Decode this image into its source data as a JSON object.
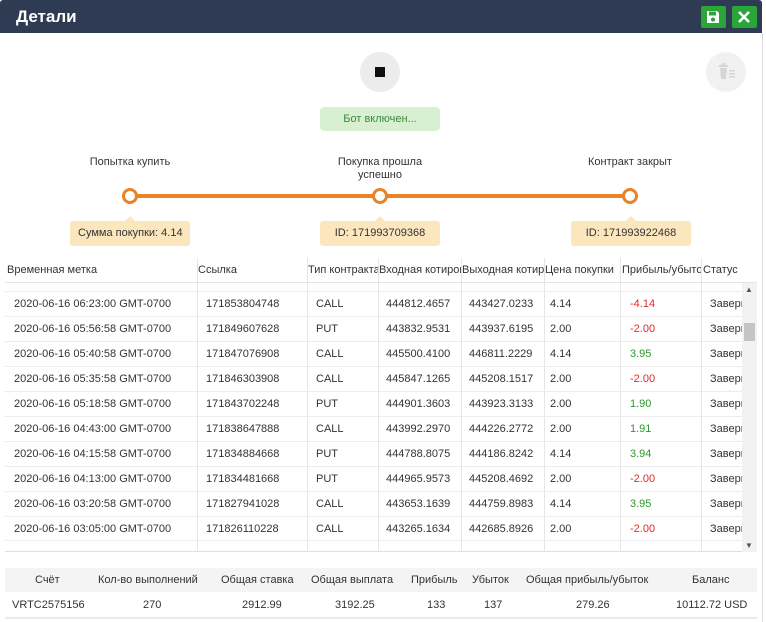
{
  "window": {
    "title": "Детали"
  },
  "icons": {
    "save": "save-icon",
    "close": "close-icon",
    "stop": "stop-icon",
    "trash": "trash-icon"
  },
  "bot_status": "Бот включен...",
  "steps": [
    {
      "label": "Попытка купить",
      "tag": "Сумма покупки: 4.14"
    },
    {
      "label": "Покупка прошла успешно",
      "tag": "ID: 171993709368"
    },
    {
      "label": "Контракт закрыт",
      "tag": "ID: 171993922468"
    }
  ],
  "table": {
    "headers": [
      "Временная метка",
      "Ссылка",
      "Тип контракта",
      "Входная котировка",
      "Выходная котировка",
      "Цена покупки",
      "Прибыль/убыток",
      "Статус"
    ],
    "rows": [
      [
        "2020-06-16 06:23:00 GMT-0700",
        "171853804748",
        "CALL",
        "444812.4657",
        "443427.0233",
        "4.14",
        "-4.14",
        "Завершено"
      ],
      [
        "2020-06-16 05:56:58 GMT-0700",
        "171849607628",
        "PUT",
        "443832.9531",
        "443937.6195",
        "2.00",
        "-2.00",
        "Завершено"
      ],
      [
        "2020-06-16 05:40:58 GMT-0700",
        "171847076908",
        "CALL",
        "445500.4100",
        "446811.2229",
        "4.14",
        "3.95",
        "Завершено"
      ],
      [
        "2020-06-16 05:35:58 GMT-0700",
        "171846303908",
        "CALL",
        "445847.1265",
        "445208.1517",
        "2.00",
        "-2.00",
        "Завершено"
      ],
      [
        "2020-06-16 05:18:58 GMT-0700",
        "171843702248",
        "PUT",
        "444901.3603",
        "443923.3133",
        "2.00",
        "1.90",
        "Завершено"
      ],
      [
        "2020-06-16 04:43:00 GMT-0700",
        "171838647888",
        "CALL",
        "443992.2970",
        "444226.2772",
        "2.00",
        "1.91",
        "Завершено"
      ],
      [
        "2020-06-16 04:15:58 GMT-0700",
        "171834884668",
        "PUT",
        "444788.8075",
        "444186.8242",
        "4.14",
        "3.94",
        "Завершено"
      ],
      [
        "2020-06-16 04:13:00 GMT-0700",
        "171834481668",
        "PUT",
        "444965.9573",
        "445208.4692",
        "2.00",
        "-2.00",
        "Завершено"
      ],
      [
        "2020-06-16 03:20:58 GMT-0700",
        "171827941028",
        "CALL",
        "443653.1639",
        "444759.8983",
        "4.14",
        "3.95",
        "Завершено"
      ],
      [
        "2020-06-16 03:05:00 GMT-0700",
        "171826110228",
        "CALL",
        "443265.1634",
        "442685.8926",
        "2.00",
        "-2.00",
        "Завершено"
      ]
    ]
  },
  "summary": {
    "headers": [
      "Счёт",
      "Кол-во выполнений",
      "Общая ставка",
      "Общая выплата",
      "Прибыль",
      "Убыток",
      "Общая прибыль/убыток",
      "Баланс"
    ],
    "values": [
      "VRTC2575156",
      "270",
      "2912.99",
      "3192.25",
      "133",
      "137",
      "279.26",
      "10112.72 USD"
    ]
  },
  "colors": {
    "header_bg": "#2f3b52",
    "accent": "#e8832a",
    "button_green": "#2aa53a",
    "profit": "#2a9a2a",
    "loss": "#e02b2b"
  }
}
